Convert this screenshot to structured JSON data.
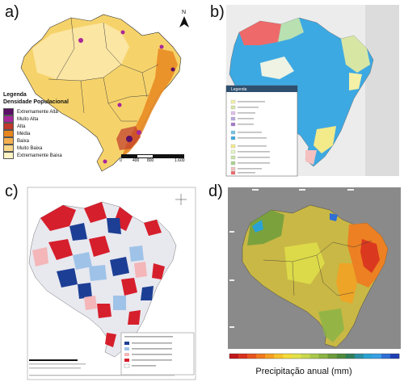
{
  "panels": {
    "a": {
      "label": "a)",
      "north": "N",
      "legend": {
        "title_line1": "Legenda",
        "title_line2": "Densidade Populacional",
        "items": [
          {
            "label": "Extremamente Alta",
            "color": "#5b0f66"
          },
          {
            "label": "Muito Alta",
            "color": "#a8279a"
          },
          {
            "label": "Alta",
            "color": "#c0392b"
          },
          {
            "label": "Média",
            "color": "#e8871e"
          },
          {
            "label": "Baixa",
            "color": "#f4b04f"
          },
          {
            "label": "Muito Baixa",
            "color": "#f9d88a"
          },
          {
            "label": "Extremamente Baixa",
            "color": "#fdf3c4"
          }
        ]
      },
      "scale": {
        "t0": "0",
        "t1": "400",
        "t2": "800",
        "t3": "1.600"
      }
    },
    "b": {
      "label": "b)",
      "legend_title": "Legenda"
    },
    "c": {
      "label": "c)"
    },
    "d": {
      "label": "d)",
      "colorbar_label": "Precipitação anual (mm)",
      "colorbar_colors": [
        "#c1161b",
        "#d9311f",
        "#e8541f",
        "#f07a1e",
        "#f5a021",
        "#f7c22a",
        "#f3dc3a",
        "#e2e24a",
        "#c9d84e",
        "#a9c84d",
        "#8bb445",
        "#6d9c3c",
        "#4e8a3b",
        "#2f7e5a",
        "#2b8fa3",
        "#2aa3d4",
        "#3aa0e6",
        "#2f6fd6",
        "#1f3fb5"
      ]
    },
    "landmass_colors": {
      "map_a_base": "#f6d36a",
      "map_b_base": "#3da9e2",
      "map_c_base": "#e8e8ef",
      "map_d_base": "#c9b845",
      "ocean_d": "#8a8a8a"
    }
  }
}
